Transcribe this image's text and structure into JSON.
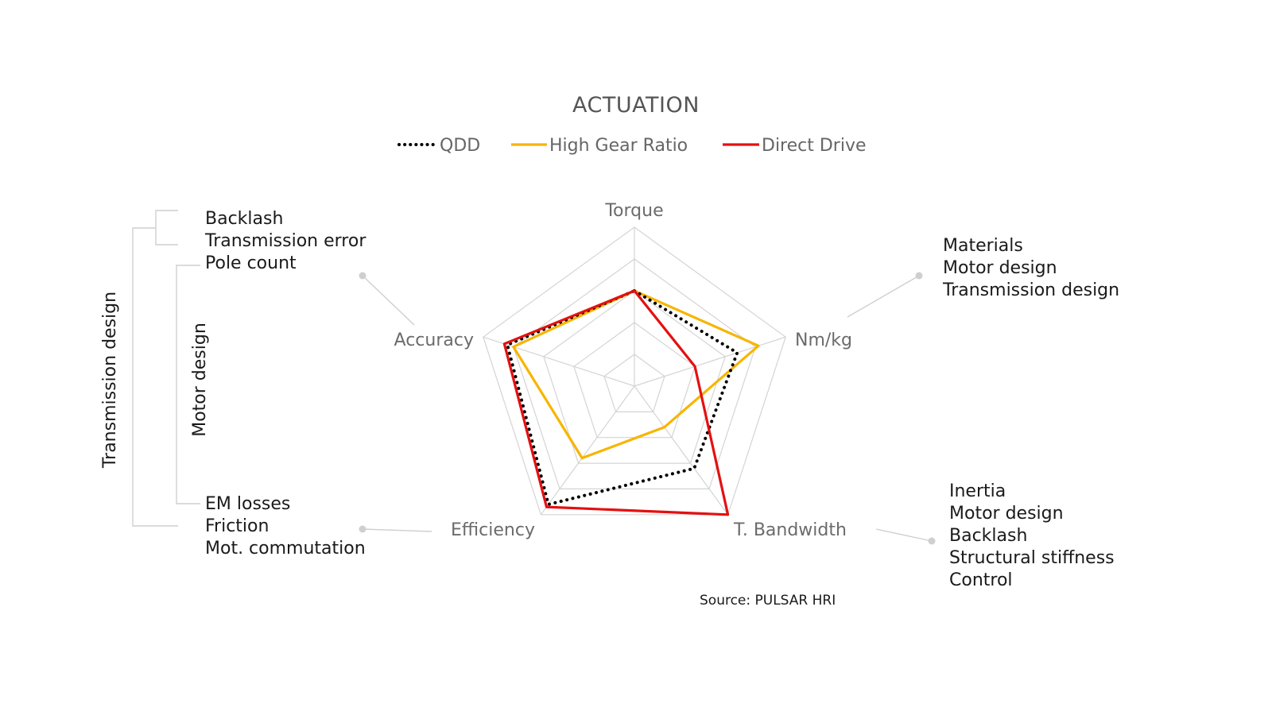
{
  "chart_data": {
    "type": "radar",
    "title": "ACTUATION",
    "axes": [
      "Torque",
      "Nm/kg",
      "T. Bandwidth",
      "Efficiency",
      "Accuracy"
    ],
    "scale": [
      0,
      5
    ],
    "grid_levels": [
      1,
      2,
      3,
      4,
      5
    ],
    "series": [
      {
        "name": "QDD",
        "color": "#000000",
        "style": "dotted",
        "values": [
          3.0,
          3.4,
          3.2,
          4.6,
          4.2
        ]
      },
      {
        "name": "High Gear Ratio",
        "color": "#F7B500",
        "style": "solid",
        "values": [
          3.0,
          4.1,
          1.6,
          2.8,
          4.0
        ]
      },
      {
        "name": "Direct Drive",
        "color": "#E41010",
        "style": "solid",
        "values": [
          3.0,
          2.0,
          5.0,
          4.7,
          4.3
        ]
      }
    ],
    "legend_position": "top-center",
    "source": "Source: PULSAR HRI"
  },
  "annotations": {
    "accuracy_notes": [
      "Backlash",
      "Transmission error",
      "Pole count"
    ],
    "nmkg_notes": [
      "Materials",
      "Motor design",
      "Transmission design"
    ],
    "bandwidth_notes": [
      "Inertia",
      "Motor design",
      "Backlash",
      "Structural stiffness",
      "Control"
    ],
    "efficiency_notes": [
      "EM losses",
      "Friction",
      "Mot. commutation"
    ]
  },
  "brackets": {
    "outer": "Transmission design",
    "inner": "Motor design"
  },
  "colors": {
    "grid": "#d4d4d4",
    "leader": "#cfcfcf"
  }
}
